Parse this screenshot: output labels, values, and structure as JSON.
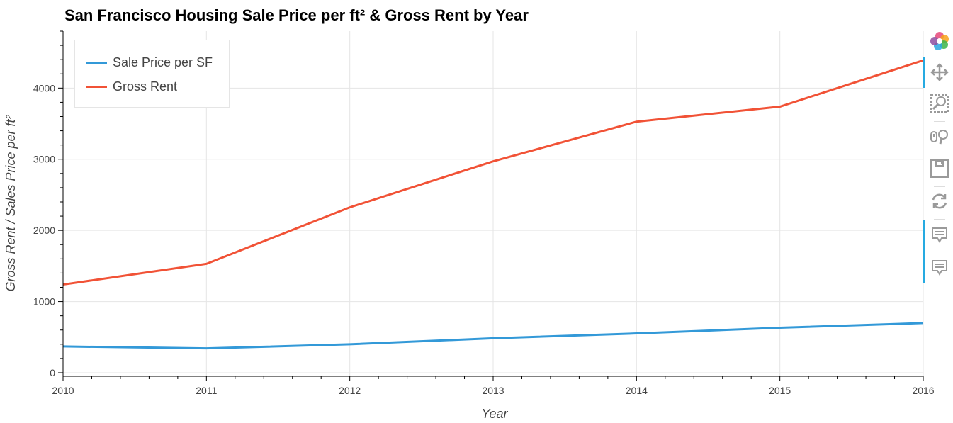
{
  "chart_data": {
    "type": "line",
    "title": "San Francisco Housing Sale Price per ft² & Gross Rent by Year",
    "xlabel": "Year",
    "ylabel": "Gross Rent / Sales Price per ft²",
    "x": [
      2010,
      2011,
      2012,
      2013,
      2014,
      2015,
      2016
    ],
    "xlim": [
      2010,
      2016
    ],
    "ylim": [
      -50,
      4800
    ],
    "xticks": [
      "2010",
      "2011",
      "2012",
      "2013",
      "2014",
      "2015",
      "2016"
    ],
    "yticks": [
      "0",
      "1000",
      "2000",
      "3000",
      "4000"
    ],
    "grid": true,
    "legend_position": "top-left",
    "series": [
      {
        "name": "Sale Price per SF",
        "color": "#3399d8",
        "values": [
          369,
          342,
          399,
          484,
          552,
          632,
          698
        ]
      },
      {
        "name": "Gross Rent",
        "color": "#f15236",
        "values": [
          1239,
          1530,
          2324,
          2971,
          3528,
          3739,
          4390
        ]
      }
    ]
  },
  "toolbar": {
    "tools": [
      "bokeh-logo-icon",
      "pan-icon",
      "box-zoom-icon",
      "wheel-zoom-icon",
      "save-icon",
      "reset-icon",
      "hover-icon",
      "hover-icon"
    ]
  }
}
